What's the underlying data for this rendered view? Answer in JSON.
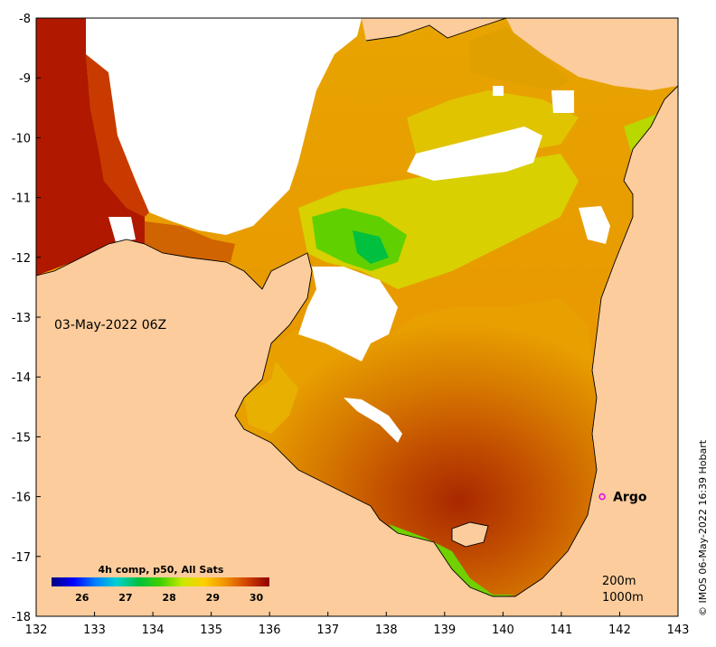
{
  "map": {
    "date_label": "03-May-2022 06Z",
    "x_ticks": [
      "132",
      "133",
      "134",
      "135",
      "136",
      "137",
      "138",
      "139",
      "140",
      "141",
      "142",
      "143"
    ],
    "y_ticks": [
      "-8",
      "-9",
      "-10",
      "-11",
      "-12",
      "-13",
      "-14",
      "-15",
      "-16",
      "-17",
      "-18"
    ],
    "lon_range": [
      132,
      143
    ],
    "lat_range": [
      -18,
      -8
    ],
    "argo": {
      "label": "Argo",
      "lon": 141.7,
      "lat": -16.0,
      "color": "#e800e8"
    },
    "contours": [
      "200m",
      "1000m"
    ],
    "credit": "© IMOS 06-May-2022 16:39 Hobart",
    "land_color": "#fccc9c",
    "missing_color": "#ffffff"
  },
  "colorbar": {
    "title": "4h comp, p50, All Sats",
    "range": [
      25.3,
      30.3
    ],
    "ticks": [
      "26",
      "27",
      "28",
      "29",
      "30"
    ],
    "tick_values": [
      26,
      27,
      28,
      29,
      30
    ],
    "colors": [
      "#00007f",
      "#0000ff",
      "#0080ff",
      "#00d0d0",
      "#00c040",
      "#40d000",
      "#c8e800",
      "#ffd000",
      "#f09000",
      "#d04000",
      "#900000"
    ]
  }
}
